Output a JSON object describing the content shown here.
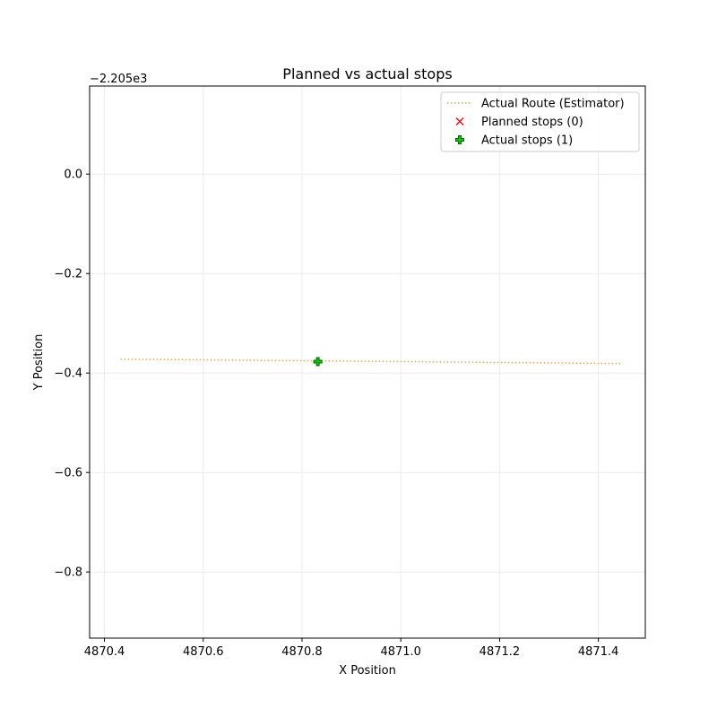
{
  "chart_data": {
    "type": "line",
    "title": "Planned vs actual stops",
    "xlabel": "X Position",
    "ylabel": "Y Position",
    "xlim": [
      4870.37,
      4871.495
    ],
    "ylim": [
      -0.933,
      0.177
    ],
    "y_offset_label": "−2.205e3",
    "xticks": [
      4870.4,
      4870.6,
      4870.8,
      4871.0,
      4871.2,
      4871.4
    ],
    "xtick_labels": [
      "4870.4",
      "4870.6",
      "4870.8",
      "4871.0",
      "4871.2",
      "4871.4"
    ],
    "yticks": [
      0.0,
      -0.2,
      -0.4,
      -0.6,
      -0.8
    ],
    "ytick_labels": [
      "0.0",
      "−0.2",
      "−0.4",
      "−0.6",
      "−0.8"
    ],
    "grid": true,
    "legend_position": "top-right",
    "series": [
      {
        "name": "Actual Route (Estimator)",
        "kind": "line",
        "style": "dotted",
        "color": "#ffa500",
        "x": [
          4870.433,
          4871.447
        ],
        "y": [
          -0.372,
          -0.381
        ]
      },
      {
        "name": "Planned stops (0)",
        "kind": "scatter",
        "marker": "x",
        "color": "#ff0000",
        "x": [],
        "y": []
      },
      {
        "name": "Actual stops (1)",
        "kind": "scatter",
        "marker": "plus",
        "color": "#00cc00",
        "edge_color": "#006400",
        "x": [
          4870.832
        ],
        "y": [
          -0.377
        ]
      }
    ]
  }
}
